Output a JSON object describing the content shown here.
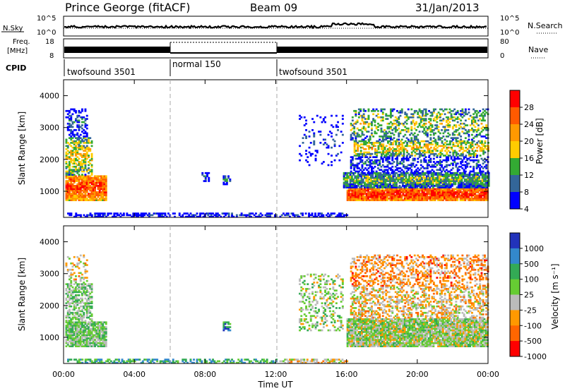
{
  "header": {
    "station": "Prince George (fitACF)",
    "beam": "Beam 09",
    "date": "31/Jan/2013"
  },
  "strips": {
    "nsky_label": "N.Sky",
    "nsearch_label": "N.Search",
    "freq_label_line1": "Freq.",
    "freq_label_line2": "[MHz]",
    "nave_label": "Nave",
    "cpid_label": "CPID",
    "nsky_left_ticks": [
      "10^5",
      "10^0"
    ],
    "nsky_right_ticks": [
      "10^5",
      "10^0"
    ],
    "freq_ticks": [
      "18",
      "8"
    ],
    "nave_ticks": [
      "80",
      "0"
    ]
  },
  "cpid_segments": [
    {
      "label": "twofsound 3501",
      "start": 0,
      "end": 6
    },
    {
      "label": "normal 150",
      "start": 6,
      "end": 12
    },
    {
      "label": "twofsound 3501",
      "start": 12,
      "end": 24
    }
  ],
  "colorbars": {
    "power": {
      "label": "Power [dB]",
      "ticks": [
        "28",
        "24",
        "20",
        "16",
        "12",
        "8",
        "4"
      ],
      "colors": [
        "#ff0000",
        "#ff5a00",
        "#ff9900",
        "#ffcc00",
        "#33aa33",
        "#336699",
        "#0000ff"
      ]
    },
    "velocity": {
      "label": "Velocity [m s⁻¹]",
      "ticks": [
        "1000",
        "500",
        "100",
        "25",
        "-25",
        "-100",
        "-500",
        "-1000"
      ],
      "colors": [
        "#2233bb",
        "#3388cc",
        "#33aa55",
        "#66cc33",
        "#bbbbbb",
        "#ff9900",
        "#ff6600",
        "#ff0000"
      ]
    }
  },
  "chart_data": [
    {
      "type": "heatmap",
      "title": "Power",
      "ylabel": "Slant Range [km]",
      "xlabel": "",
      "xlim": [
        0,
        24
      ],
      "ylim": [
        180,
        4500
      ],
      "y_ticks": [
        1000,
        2000,
        3000,
        4000
      ],
      "blobs": [
        {
          "t0": 0.1,
          "t1": 2.4,
          "r0": 700,
          "r1": 1500,
          "cls": 0.85,
          "dens": 0.9
        },
        {
          "t0": 0.1,
          "t1": 1.6,
          "r0": 1500,
          "r1": 2700,
          "cls": 0.55,
          "dens": 0.6
        },
        {
          "t0": 0.1,
          "t1": 1.3,
          "r0": 2700,
          "r1": 3600,
          "cls": 0.2,
          "dens": 0.35
        },
        {
          "t0": 0.2,
          "t1": 12.0,
          "r0": 180,
          "r1": 320,
          "cls": 0.1,
          "dens": 0.55
        },
        {
          "t0": 9.0,
          "t1": 9.4,
          "r0": 1200,
          "r1": 1500,
          "cls": 0.2,
          "dens": 0.6
        },
        {
          "t0": 7.8,
          "t1": 8.2,
          "r0": 1300,
          "r1": 1600,
          "cls": 0.2,
          "dens": 0.4
        },
        {
          "t0": 12.2,
          "t1": 16.0,
          "r0": 180,
          "r1": 330,
          "cls": 0.12,
          "dens": 0.5
        },
        {
          "t0": 13.3,
          "t1": 15.8,
          "r0": 1800,
          "r1": 3400,
          "cls": 0.15,
          "dens": 0.12
        },
        {
          "t0": 16.0,
          "t1": 24.0,
          "r0": 700,
          "r1": 1100,
          "cls": 0.92,
          "dens": 0.95
        },
        {
          "t0": 15.8,
          "t1": 24.0,
          "r0": 1100,
          "r1": 1600,
          "cls": 0.4,
          "dens": 0.85
        },
        {
          "t0": 16.2,
          "t1": 24.0,
          "r0": 1600,
          "r1": 2100,
          "cls": 0.2,
          "dens": 0.45
        },
        {
          "t0": 16.4,
          "t1": 24.0,
          "r0": 2100,
          "r1": 2600,
          "cls": 0.55,
          "dens": 0.55
        },
        {
          "t0": 16.2,
          "t1": 24.0,
          "r0": 2600,
          "r1": 3600,
          "cls": 0.45,
          "dens": 0.35
        }
      ]
    },
    {
      "type": "heatmap",
      "title": "Velocity",
      "ylabel": "Slant Range [km]",
      "xlabel": "Time UT",
      "xlim": [
        0,
        24
      ],
      "ylim": [
        180,
        4500
      ],
      "y_ticks": [
        1000,
        2000,
        3000,
        4000
      ],
      "x_ticks": [
        "00:00",
        "04:00",
        "08:00",
        "12:00",
        "16:00",
        "20:00",
        "00:00"
      ],
      "blobs": [
        {
          "t0": 0.1,
          "t1": 2.4,
          "r0": 700,
          "r1": 1500,
          "cls": 0.45,
          "dens": 0.9
        },
        {
          "t0": 0.1,
          "t1": 1.6,
          "r0": 1500,
          "r1": 2700,
          "cls": 0.45,
          "dens": 0.6
        },
        {
          "t0": 0.1,
          "t1": 1.3,
          "r0": 2700,
          "r1": 3600,
          "cls": 0.6,
          "dens": 0.3
        },
        {
          "t0": 0.2,
          "t1": 12.0,
          "r0": 180,
          "r1": 320,
          "cls": 0.3,
          "dens": 0.5
        },
        {
          "t0": 9.0,
          "t1": 9.4,
          "r0": 1200,
          "r1": 1500,
          "cls": 0.25,
          "dens": 0.6
        },
        {
          "t0": 12.2,
          "t1": 16.0,
          "r0": 180,
          "r1": 330,
          "cls": 0.62,
          "dens": 0.5
        },
        {
          "t0": 13.3,
          "t1": 15.8,
          "r0": 1200,
          "r1": 3000,
          "cls": 0.5,
          "dens": 0.3
        },
        {
          "t0": 16.0,
          "t1": 24.0,
          "r0": 700,
          "r1": 1600,
          "cls": 0.5,
          "dens": 0.9
        },
        {
          "t0": 16.2,
          "t1": 24.0,
          "r0": 1600,
          "r1": 2600,
          "cls": 0.62,
          "dens": 0.45
        },
        {
          "t0": 16.2,
          "t1": 24.0,
          "r0": 2600,
          "r1": 3600,
          "cls": 0.72,
          "dens": 0.4
        }
      ]
    }
  ]
}
